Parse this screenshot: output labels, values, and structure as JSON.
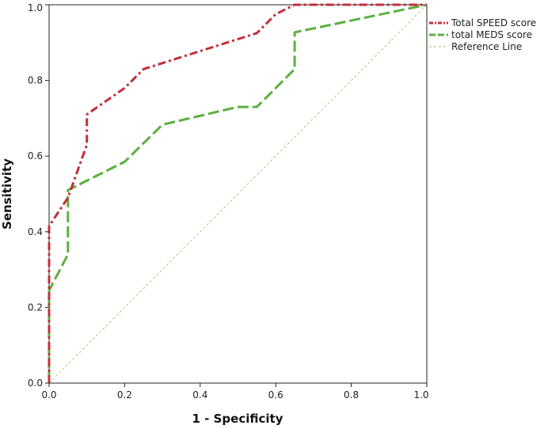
{
  "chart_data": {
    "type": "line",
    "title": "",
    "xlabel": "1 - Specificity",
    "ylabel": "Sensitivity",
    "xlim": [
      0,
      1
    ],
    "ylim": [
      0,
      1
    ],
    "x_ticks": [
      "0.0",
      "0.2",
      "0.4",
      "0.6",
      "0.8",
      "1.0"
    ],
    "y_ticks": [
      "0.0",
      "0.2",
      "0.4",
      "0.6",
      "0.8",
      "1.0"
    ],
    "grid": false,
    "legend_position": "top-right-outside",
    "series": [
      {
        "name": "Total SPEED score",
        "color": "#c0303a",
        "style": "dash-dot",
        "points": [
          [
            0,
            0
          ],
          [
            0,
            0.415
          ],
          [
            0.05,
            0.49
          ],
          [
            0.1,
            0.63
          ],
          [
            0.1,
            0.71
          ],
          [
            0.2,
            0.78
          ],
          [
            0.25,
            0.83
          ],
          [
            0.55,
            0.925
          ],
          [
            0.6,
            0.975
          ],
          [
            0.65,
            1.0
          ],
          [
            1.0,
            1.0
          ]
        ]
      },
      {
        "name": "total MEDS score",
        "color": "#5cb040",
        "style": "long-dash",
        "points": [
          [
            0,
            0
          ],
          [
            0,
            0.245
          ],
          [
            0.05,
            0.34
          ],
          [
            0.05,
            0.51
          ],
          [
            0.2,
            0.585
          ],
          [
            0.3,
            0.683
          ],
          [
            0.5,
            0.73
          ],
          [
            0.55,
            0.73
          ],
          [
            0.65,
            0.83
          ],
          [
            0.65,
            0.927
          ],
          [
            1.0,
            1.0
          ]
        ]
      },
      {
        "name": "Reference Line",
        "color": "#c8cc8c",
        "style": "dotted",
        "points": [
          [
            0,
            0
          ],
          [
            1,
            1
          ]
        ]
      }
    ]
  }
}
